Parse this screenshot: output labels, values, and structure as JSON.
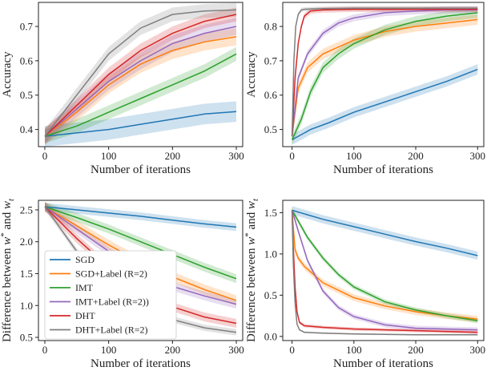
{
  "legend": {
    "position": "inside-left of bottom-left panel",
    "entries": [
      "SGD",
      "SGD+Label (R=2)",
      "IMT",
      "IMT+Label (R=2))",
      "DHT",
      "DHT+Label (R=2)"
    ]
  },
  "colors": {
    "SGD": "#1f77b4",
    "SGD+Label (R=2)": "#ff7f0e",
    "IMT": "#2ca02c",
    "IMT+Label (R=2))": "#9467bd",
    "DHT": "#d62728",
    "DHT+Label (R=2)": "#7f7f7f"
  },
  "chart_data": [
    {
      "type": "line",
      "xlabel": "Number of iterations",
      "ylabel": "Accuracy",
      "xlim": [
        -10,
        310
      ],
      "ylim": [
        0.35,
        0.77
      ],
      "xticks": [
        0,
        100,
        200,
        300
      ],
      "yticks": [
        0.4,
        0.5,
        0.6,
        0.7
      ],
      "grid": false,
      "series": [
        {
          "name": "SGD",
          "x": [
            0,
            50,
            100,
            150,
            200,
            250,
            300
          ],
          "y": [
            0.38,
            0.39,
            0.4,
            0.415,
            0.43,
            0.445,
            0.452
          ],
          "band": 0.03
        },
        {
          "name": "SGD+Label (R=2)",
          "x": [
            0,
            50,
            100,
            150,
            200,
            250,
            300
          ],
          "y": [
            0.38,
            0.45,
            0.53,
            0.59,
            0.63,
            0.655,
            0.67
          ],
          "band": 0.025
        },
        {
          "name": "IMT",
          "x": [
            0,
            50,
            100,
            150,
            200,
            250,
            300
          ],
          "y": [
            0.38,
            0.41,
            0.45,
            0.49,
            0.53,
            0.57,
            0.62
          ],
          "band": 0.02
        },
        {
          "name": "IMT+Label (R=2))",
          "x": [
            0,
            50,
            100,
            150,
            200,
            250,
            300
          ],
          "y": [
            0.38,
            0.46,
            0.54,
            0.6,
            0.65,
            0.68,
            0.7
          ],
          "band": 0.025
        },
        {
          "name": "DHT",
          "x": [
            0,
            50,
            100,
            150,
            200,
            250,
            300
          ],
          "y": [
            0.38,
            0.47,
            0.56,
            0.63,
            0.68,
            0.715,
            0.735
          ],
          "band": 0.02
        },
        {
          "name": "DHT+Label (R=2)",
          "x": [
            0,
            50,
            100,
            150,
            200,
            250,
            300
          ],
          "y": [
            0.38,
            0.5,
            0.62,
            0.695,
            0.735,
            0.745,
            0.748
          ],
          "band": 0.02
        }
      ]
    },
    {
      "type": "line",
      "xlabel": "Number of iterations",
      "ylabel": "Accuracy",
      "xlim": [
        -15,
        310
      ],
      "ylim": [
        0.45,
        0.87
      ],
      "xticks": [
        0,
        100,
        200,
        300
      ],
      "yticks": [
        0.5,
        0.6,
        0.7,
        0.8
      ],
      "grid": false,
      "series": [
        {
          "name": "SGD",
          "x": [
            0,
            30,
            60,
            100,
            150,
            200,
            250,
            300
          ],
          "y": [
            0.47,
            0.5,
            0.52,
            0.55,
            0.58,
            0.61,
            0.64,
            0.675
          ],
          "band": 0.015
        },
        {
          "name": "SGD+Label (R=2)",
          "x": [
            0,
            10,
            25,
            50,
            75,
            100,
            150,
            200,
            250,
            300
          ],
          "y": [
            0.48,
            0.62,
            0.68,
            0.72,
            0.74,
            0.76,
            0.785,
            0.8,
            0.81,
            0.82
          ],
          "band": 0.015
        },
        {
          "name": "IMT",
          "x": [
            0,
            15,
            30,
            50,
            75,
            100,
            150,
            200,
            250,
            300
          ],
          "y": [
            0.47,
            0.53,
            0.61,
            0.68,
            0.72,
            0.75,
            0.79,
            0.815,
            0.83,
            0.84
          ],
          "band": 0.015
        },
        {
          "name": "IMT+Label (R=2))",
          "x": [
            0,
            10,
            25,
            50,
            75,
            100,
            150,
            200,
            250,
            300
          ],
          "y": [
            0.48,
            0.65,
            0.72,
            0.78,
            0.81,
            0.825,
            0.84,
            0.845,
            0.848,
            0.848
          ],
          "band": 0.01
        },
        {
          "name": "DHT",
          "x": [
            0,
            5,
            10,
            15,
            20,
            30,
            50,
            100,
            200,
            300
          ],
          "y": [
            0.48,
            0.65,
            0.75,
            0.8,
            0.83,
            0.845,
            0.848,
            0.85,
            0.85,
            0.85
          ],
          "band": 0.008
        },
        {
          "name": "DHT+Label (R=2)",
          "x": [
            0,
            3,
            6,
            10,
            15,
            20,
            50,
            100,
            200,
            300
          ],
          "y": [
            0.48,
            0.7,
            0.8,
            0.835,
            0.848,
            0.85,
            0.852,
            0.853,
            0.853,
            0.853
          ],
          "band": 0.006
        }
      ]
    },
    {
      "type": "line",
      "xlabel": "Number of iterations",
      "ylabel": "Difference between w* and w_t",
      "ylabel_parts": {
        "main": "Difference between ",
        "w1": "w",
        "star": "*",
        "and": " and ",
        "w2": "w",
        "sub": "t"
      },
      "xlim": [
        -10,
        310
      ],
      "ylim": [
        0.45,
        2.65
      ],
      "xticks": [
        0,
        100,
        200,
        300
      ],
      "yticks": [
        0.5,
        1.0,
        1.5,
        2.0,
        2.5
      ],
      "grid": false,
      "series": [
        {
          "name": "SGD",
          "x": [
            0,
            50,
            100,
            150,
            200,
            250,
            300
          ],
          "y": [
            2.55,
            2.5,
            2.45,
            2.4,
            2.34,
            2.28,
            2.23
          ],
          "band": 0.06
        },
        {
          "name": "SGD+Label (R=2)",
          "x": [
            0,
            50,
            100,
            150,
            200,
            250,
            300
          ],
          "y": [
            2.55,
            2.25,
            1.95,
            1.68,
            1.45,
            1.25,
            1.08
          ],
          "band": 0.08
        },
        {
          "name": "IMT",
          "x": [
            0,
            50,
            100,
            150,
            200,
            250,
            300
          ],
          "y": [
            2.55,
            2.38,
            2.2,
            2.0,
            1.8,
            1.6,
            1.42
          ],
          "band": 0.07
        },
        {
          "name": "IMT+Label (R=2))",
          "x": [
            0,
            50,
            100,
            150,
            200,
            250,
            300
          ],
          "y": [
            2.55,
            2.2,
            1.85,
            1.55,
            1.3,
            1.15,
            1.02
          ],
          "band": 0.07
        },
        {
          "name": "DHT",
          "x": [
            0,
            50,
            100,
            150,
            200,
            250,
            300
          ],
          "y": [
            2.55,
            2.05,
            1.6,
            1.25,
            0.98,
            0.82,
            0.72
          ],
          "band": 0.07
        },
        {
          "name": "DHT+Label (R=2)",
          "x": [
            0,
            50,
            100,
            150,
            200,
            250,
            300
          ],
          "y": [
            2.55,
            1.85,
            1.32,
            1.0,
            0.78,
            0.65,
            0.58
          ],
          "band": 0.05
        }
      ]
    },
    {
      "type": "line",
      "xlabel": "Number of iterations",
      "ylabel": "Difference between w* and w_t",
      "ylabel_parts": {
        "main": "Difference between ",
        "w1": "w",
        "star": "*",
        "and": " and ",
        "w2": "w",
        "sub": "t"
      },
      "xlim": [
        -15,
        310
      ],
      "ylim": [
        -0.05,
        1.65
      ],
      "xticks": [
        0,
        100,
        200,
        300
      ],
      "yticks": [
        0.0,
        0.5,
        1.0,
        1.5
      ],
      "grid": false,
      "series": [
        {
          "name": "SGD",
          "x": [
            0,
            50,
            100,
            150,
            200,
            250,
            300
          ],
          "y": [
            1.53,
            1.42,
            1.33,
            1.24,
            1.15,
            1.07,
            0.98
          ],
          "band": 0.05
        },
        {
          "name": "SGD+Label (R=2)",
          "x": [
            0,
            5,
            10,
            20,
            50,
            100,
            150,
            200,
            250,
            300
          ],
          "y": [
            1.53,
            1.05,
            0.95,
            0.85,
            0.65,
            0.47,
            0.37,
            0.3,
            0.25,
            0.21
          ],
          "band": 0.04
        },
        {
          "name": "IMT",
          "x": [
            0,
            10,
            25,
            50,
            75,
            100,
            150,
            200,
            250,
            300
          ],
          "y": [
            1.53,
            1.4,
            1.2,
            0.95,
            0.75,
            0.6,
            0.42,
            0.32,
            0.25,
            0.19
          ],
          "band": 0.03
        },
        {
          "name": "IMT+Label (R=2))",
          "x": [
            0,
            10,
            25,
            50,
            75,
            100,
            150,
            200,
            250,
            300
          ],
          "y": [
            1.53,
            1.28,
            0.92,
            0.55,
            0.35,
            0.24,
            0.14,
            0.1,
            0.09,
            0.08
          ],
          "band": 0.03
        },
        {
          "name": "DHT",
          "x": [
            0,
            2,
            5,
            8,
            12,
            20,
            50,
            100,
            200,
            300
          ],
          "y": [
            1.53,
            1.1,
            0.6,
            0.3,
            0.17,
            0.13,
            0.11,
            0.09,
            0.07,
            0.05
          ],
          "band": 0.02
        },
        {
          "name": "DHT+Label (R=2)",
          "x": [
            0,
            2,
            5,
            8,
            12,
            20,
            50,
            100,
            200,
            300
          ],
          "y": [
            1.53,
            0.9,
            0.4,
            0.15,
            0.08,
            0.05,
            0.04,
            0.03,
            0.02,
            0.02
          ],
          "band": 0.01
        }
      ]
    }
  ]
}
